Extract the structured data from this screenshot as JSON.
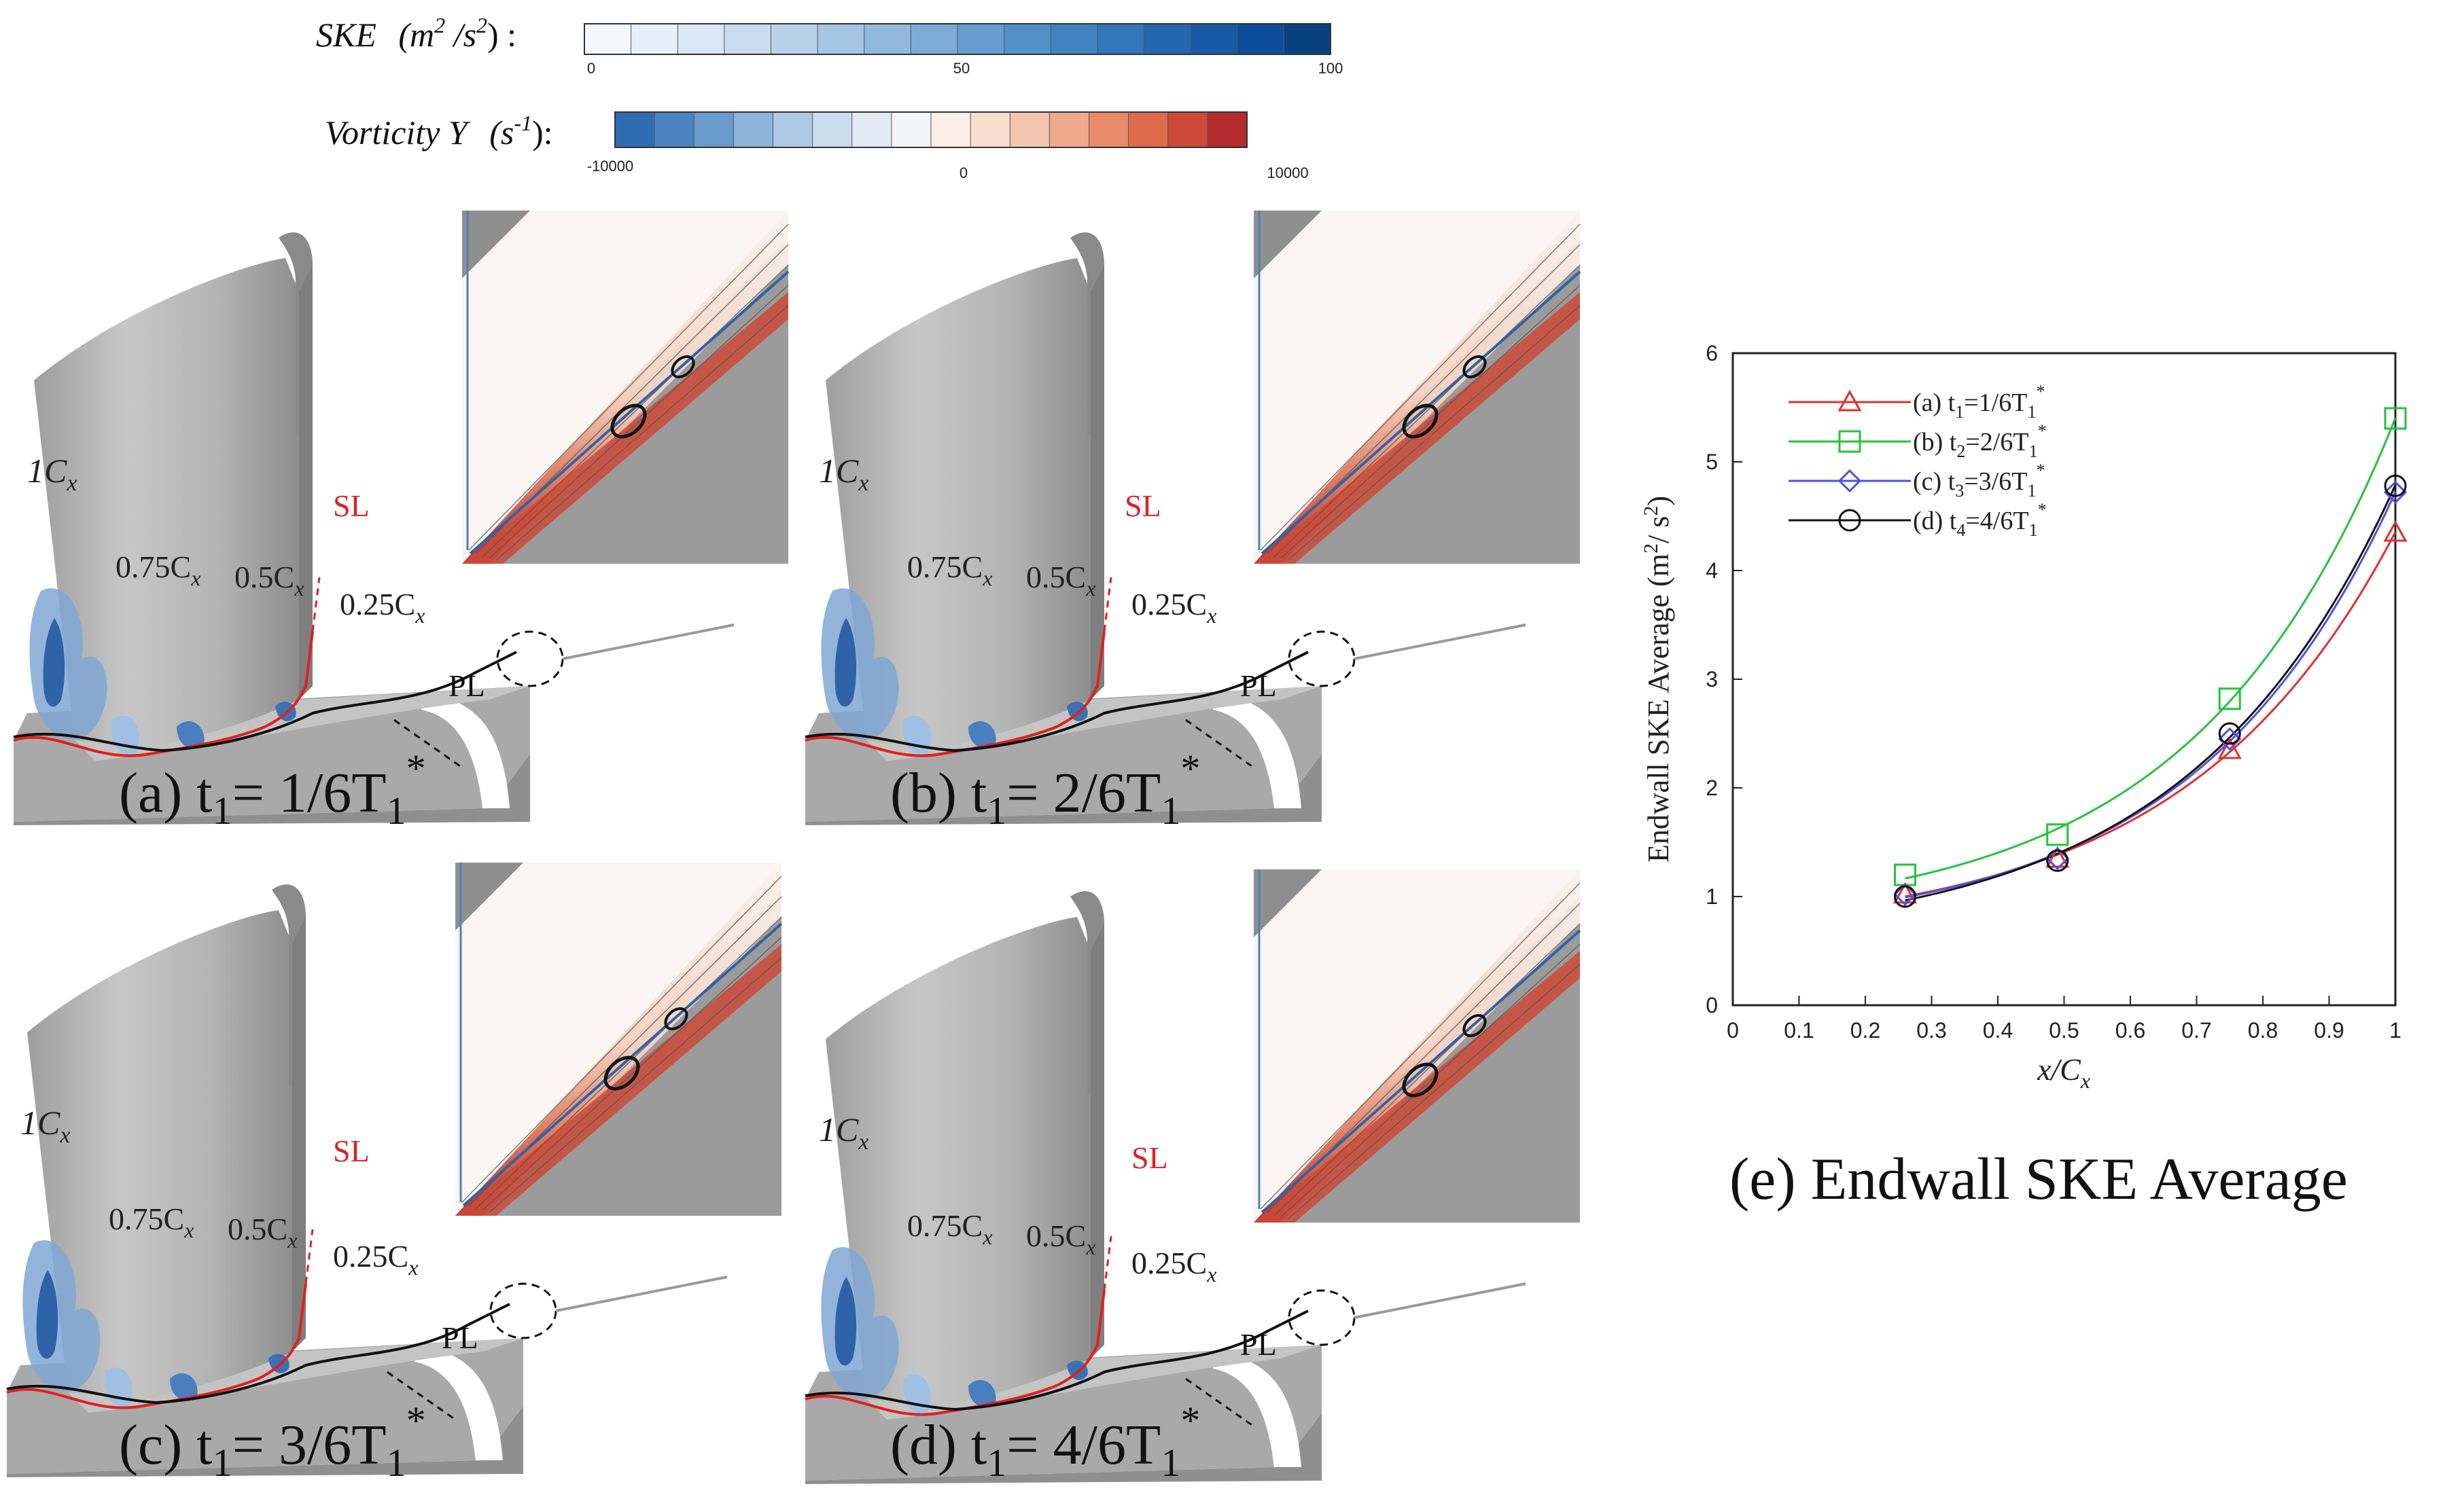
{
  "colorbars": {
    "ske": {
      "label_main": "SKE",
      "label_unit": "(m",
      "label_exp": "2",
      "label_unit2": " /s",
      "label_exp2": "2",
      "label_close": ") :",
      "ticks": [
        "0",
        "50",
        "100"
      ],
      "colors": [
        "#f4f8fc",
        "#e7eff8",
        "#d9e6f3",
        "#c9dcef",
        "#b8d2ea",
        "#a5c6e4",
        "#91b9dd",
        "#7cabd6",
        "#679dcf",
        "#5390c8",
        "#4182c0",
        "#3275b8",
        "#2467af",
        "#175aa5",
        "#0c4d9b",
        "#08427e"
      ]
    },
    "vort": {
      "label_main": "Vorticity Y",
      "label_unit": "(s",
      "label_exp": "-1",
      "label_close": "):",
      "ticks": [
        "-10000",
        "0",
        "10000"
      ],
      "colors": [
        "#2f6db3",
        "#4a83c0",
        "#6a9bcd",
        "#8cb3d9",
        "#adc9e4",
        "#cbdcec",
        "#e2ebf3",
        "#f3f5f7",
        "#fbeee6",
        "#f8dccd",
        "#f4c5ae",
        "#efa98b",
        "#e78b69",
        "#dc6a4b",
        "#cc4a37",
        "#b52a2c"
      ]
    }
  },
  "panels": [
    {
      "id": "a",
      "caption": "(a) t",
      "sub": "1",
      "value": "= 1/6T",
      "sub2": "1",
      "sup": "*"
    },
    {
      "id": "b",
      "caption": "(b) t",
      "sub": "1",
      "value": "= 2/6T",
      "sub2": "1",
      "sup": "*"
    },
    {
      "id": "c",
      "caption": "(c) t",
      "sub": "1",
      "value": "= 3/6T",
      "sub2": "1",
      "sup": "*"
    },
    {
      "id": "d",
      "caption": "(d) t",
      "sub": "1",
      "value": "= 4/6T",
      "sub2": "1",
      "sup": "*"
    }
  ],
  "blade_labels": {
    "c1": "1C",
    "c075": "0.75C",
    "c05": "0.5C",
    "c025": "0.25C",
    "x": "x",
    "sl": "SL",
    "pl": "PL"
  },
  "colors": {
    "blade": "#b9b9b9",
    "endwall": "#a8a8a8",
    "sl_line": "#e02020",
    "pl_line": "#111111"
  },
  "chart_data": {
    "type": "line",
    "title": "(e) Endwall SKE Average",
    "xlabel": "x/C",
    "xlabel_sub": "x",
    "ylabel": "Endwall SKE Average   (m",
    "ylabel_exp": "2",
    "ylabel_rest": "/ s",
    "ylabel_exp2": "2",
    "ylabel_close": ")",
    "xlim": [
      0,
      1
    ],
    "ylim": [
      0,
      6
    ],
    "xticks": [
      "0",
      "0.1",
      "0.2",
      "0.3",
      "0.4",
      "0.5",
      "0.6",
      "0.7",
      "0.8",
      "0.9",
      "1"
    ],
    "yticks": [
      "0",
      "1",
      "2",
      "3",
      "4",
      "5",
      "6"
    ],
    "x": [
      0.26,
      0.49,
      0.75,
      1.0
    ],
    "series": [
      {
        "name": "(a) t",
        "sub": "1",
        "rest": "=1/6T",
        "sub2": "1",
        "sup": "*",
        "color": "#e03030",
        "marker": "triangle",
        "values": [
          1.02,
          1.35,
          2.35,
          4.35
        ]
      },
      {
        "name": "(b) t",
        "sub": "2",
        "rest": "=2/6T",
        "sub2": "1",
        "sup": "*",
        "color": "#22c43a",
        "marker": "square",
        "values": [
          1.2,
          1.57,
          2.82,
          5.4
        ]
      },
      {
        "name": "(c) t",
        "sub": "3",
        "rest": "=3/6T",
        "sub2": "1",
        "sup": "*",
        "color": "#5050e0",
        "marker": "diamond",
        "values": [
          1.02,
          1.35,
          2.45,
          4.72
        ]
      },
      {
        "name": "(d) t",
        "sub": "4",
        "rest": "=4/6T",
        "sub2": "1",
        "sup": "*",
        "color": "#111111",
        "marker": "circle",
        "values": [
          1.0,
          1.33,
          2.5,
          4.78
        ]
      }
    ]
  }
}
